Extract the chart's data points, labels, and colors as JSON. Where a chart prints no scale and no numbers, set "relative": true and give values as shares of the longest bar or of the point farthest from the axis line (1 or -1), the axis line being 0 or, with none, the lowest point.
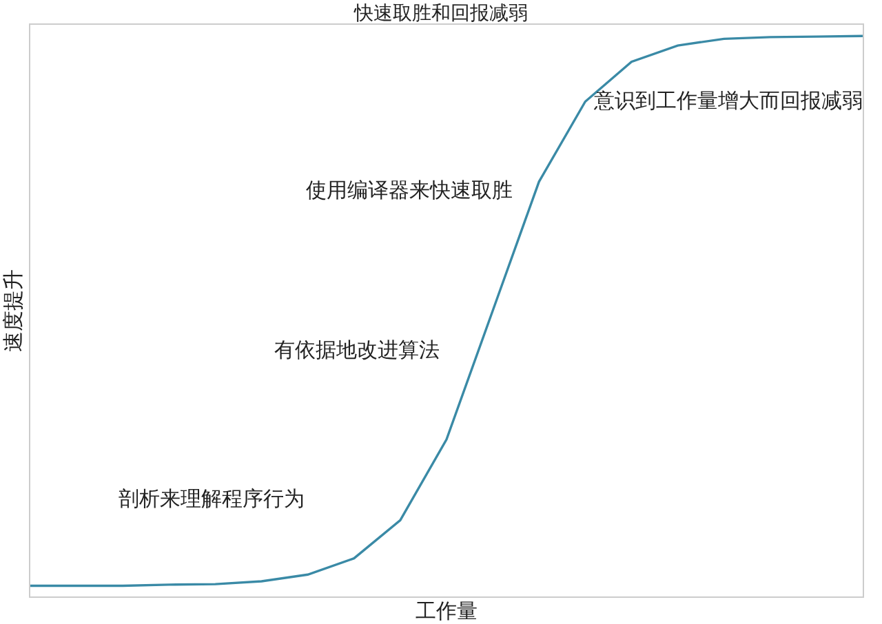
{
  "chart_data": {
    "type": "line",
    "title": "快速取胜和回报减弱",
    "xlabel": "工作量",
    "ylabel": "速度提升",
    "relative": true,
    "categories": [
      null,
      null,
      null,
      null,
      null,
      null,
      null,
      null,
      null,
      null,
      null,
      null,
      null,
      null,
      null,
      null,
      null,
      null,
      null
    ],
    "series": [
      {
        "color": "#3a8aa6",
        "values": [
          0.019,
          0.019,
          0.019,
          0.021,
          0.022,
          0.027,
          0.039,
          0.068,
          0.136,
          0.28,
          0.51,
          0.74,
          0.883,
          0.954,
          0.983,
          0.995,
          0.998,
          0.999,
          1
        ]
      }
    ],
    "annotations": [
      "剖析来理解程序行为",
      "有依据地改进算法",
      "使用编译器来快速取胜",
      "意识到工作量增大而回报减弱"
    ]
  }
}
